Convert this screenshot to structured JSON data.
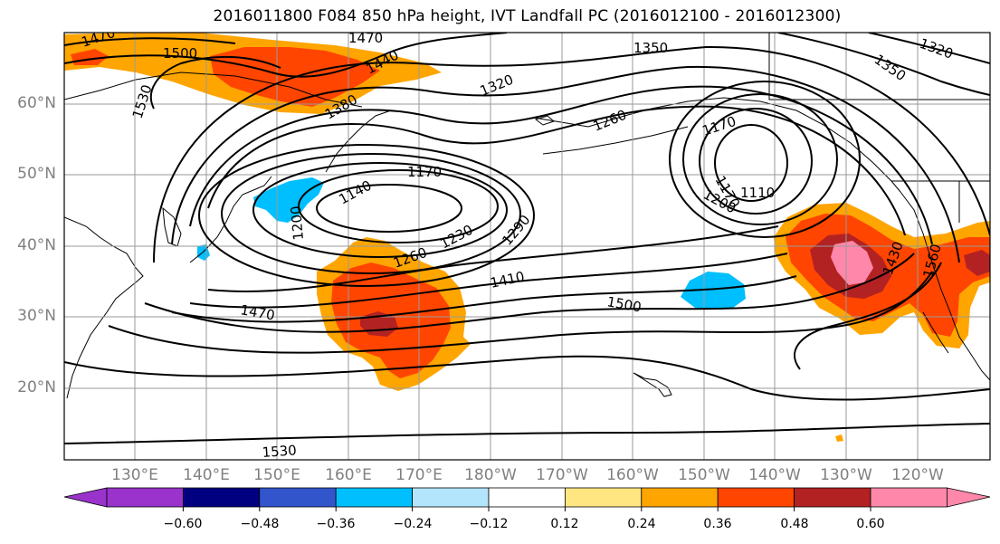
{
  "title": "2016011800 F084 850 hPa height, IVT Landfall PC (2016012100 - 2016012300)",
  "lat_labels": [
    "60°N",
    "50°N",
    "40°N",
    "30°N",
    "20°N"
  ],
  "lon_labels": [
    "130°E",
    "140°E",
    "150°E",
    "160°E",
    "170°E",
    "180°W",
    "170°W",
    "160°W",
    "150°W",
    "140°W",
    "130°W",
    "120°W"
  ],
  "colorbar": {
    "ticks": [
      "−0.60",
      "−0.48",
      "−0.36",
      "−0.24",
      "−0.12",
      "0.12",
      "0.24",
      "0.36",
      "0.48",
      "0.60"
    ],
    "colors": [
      "#9933cc",
      "#000080",
      "#3355cc",
      "#00bfff",
      "#b3e5fc",
      "#ffffff",
      "#ffe680",
      "#ffa500",
      "#ff4500",
      "#b22222",
      "#ff88aa"
    ]
  },
  "contour_labels": [
    "1470",
    "1500",
    "1470",
    "1350",
    "1320",
    "1440",
    "1530",
    "1380",
    "1320",
    "1350",
    "1260",
    "1170",
    "1170",
    "1140",
    "1110",
    "1170",
    "1200",
    "1200",
    "1230",
    "1290",
    "1260",
    "1410",
    "1500",
    "1430",
    "1560",
    "1470",
    "1530"
  ],
  "shading_colors": {
    "light_orange": "#ffa500",
    "orange_red": "#ff4500",
    "dark_red": "#b22222",
    "pink": "#ff88aa",
    "cyan": "#00bfff",
    "pale_yellow": "#ffe680"
  }
}
